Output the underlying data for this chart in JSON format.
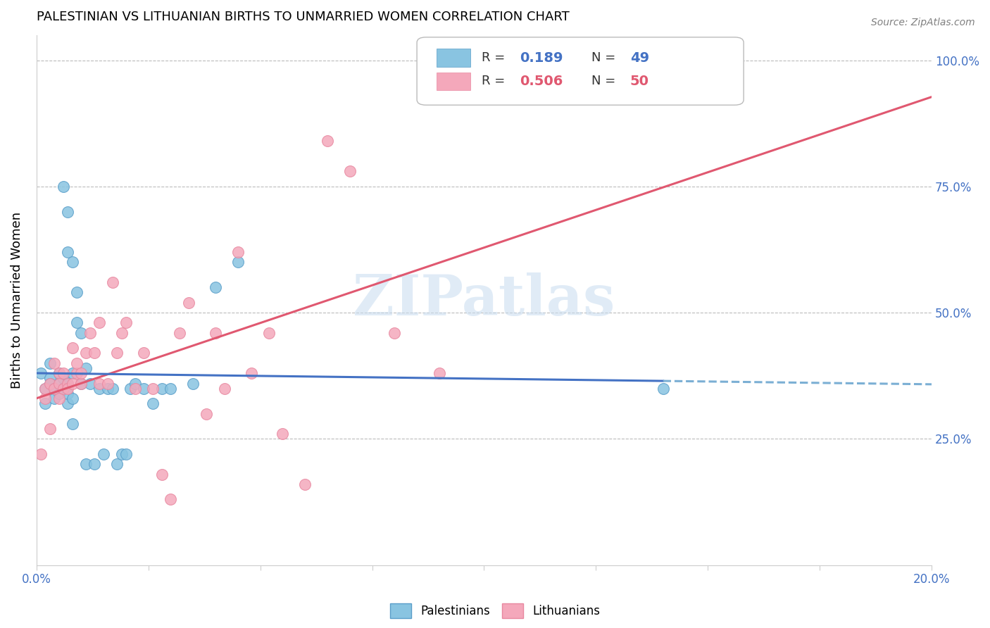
{
  "title": "PALESTINIAN VS LITHUANIAN BIRTHS TO UNMARRIED WOMEN CORRELATION CHART",
  "source": "Source: ZipAtlas.com",
  "ylabel": "Births to Unmarried Women",
  "legend_blue_rval": "0.189",
  "legend_blue_nval": "49",
  "legend_pink_rval": "0.506",
  "legend_pink_nval": "50",
  "watermark": "ZIPatlas",
  "blue_scatter_color": "#89C4E1",
  "blue_scatter_edge": "#5A9EC9",
  "pink_scatter_color": "#F4A8BB",
  "pink_scatter_edge": "#E888A0",
  "blue_line_color": "#4472C4",
  "blue_dash_color": "#7BAFD4",
  "pink_line_color": "#E05870",
  "palestinians_x": [
    0.001,
    0.002,
    0.002,
    0.003,
    0.003,
    0.003,
    0.004,
    0.004,
    0.005,
    0.005,
    0.005,
    0.006,
    0.006,
    0.006,
    0.007,
    0.007,
    0.007,
    0.008,
    0.008,
    0.008,
    0.009,
    0.009,
    0.01,
    0.01,
    0.011,
    0.011,
    0.012,
    0.013,
    0.014,
    0.015,
    0.016,
    0.017,
    0.018,
    0.019,
    0.02,
    0.021,
    0.022,
    0.024,
    0.026,
    0.028,
    0.03,
    0.035,
    0.04,
    0.045,
    0.006,
    0.007,
    0.007,
    0.008,
    0.14
  ],
  "palestinians_y": [
    0.38,
    0.32,
    0.35,
    0.37,
    0.36,
    0.4,
    0.33,
    0.35,
    0.38,
    0.34,
    0.36,
    0.37,
    0.35,
    0.37,
    0.32,
    0.34,
    0.36,
    0.28,
    0.33,
    0.38,
    0.48,
    0.54,
    0.46,
    0.36,
    0.39,
    0.2,
    0.36,
    0.2,
    0.35,
    0.22,
    0.35,
    0.35,
    0.2,
    0.22,
    0.22,
    0.35,
    0.36,
    0.35,
    0.32,
    0.35,
    0.35,
    0.36,
    0.55,
    0.6,
    0.75,
    0.7,
    0.62,
    0.6,
    0.35
  ],
  "lithuanians_x": [
    0.001,
    0.002,
    0.002,
    0.003,
    0.003,
    0.004,
    0.004,
    0.005,
    0.005,
    0.005,
    0.006,
    0.006,
    0.007,
    0.007,
    0.008,
    0.008,
    0.009,
    0.009,
    0.01,
    0.01,
    0.011,
    0.012,
    0.013,
    0.014,
    0.014,
    0.016,
    0.017,
    0.018,
    0.019,
    0.02,
    0.022,
    0.024,
    0.026,
    0.028,
    0.03,
    0.032,
    0.034,
    0.038,
    0.04,
    0.042,
    0.045,
    0.048,
    0.052,
    0.055,
    0.06,
    0.065,
    0.07,
    0.08,
    0.09,
    0.145
  ],
  "lithuanians_y": [
    0.22,
    0.33,
    0.35,
    0.27,
    0.36,
    0.35,
    0.4,
    0.33,
    0.38,
    0.36,
    0.38,
    0.35,
    0.36,
    0.35,
    0.36,
    0.43,
    0.38,
    0.4,
    0.36,
    0.38,
    0.42,
    0.46,
    0.42,
    0.36,
    0.48,
    0.36,
    0.56,
    0.42,
    0.46,
    0.48,
    0.35,
    0.42,
    0.35,
    0.18,
    0.13,
    0.46,
    0.52,
    0.3,
    0.46,
    0.35,
    0.62,
    0.38,
    0.46,
    0.26,
    0.16,
    0.84,
    0.78,
    0.46,
    0.38,
    1.0
  ],
  "xlim": [
    0.0,
    0.2
  ],
  "ylim": [
    0.0,
    1.05
  ],
  "x_ticks": [
    0.0,
    0.025,
    0.05,
    0.075,
    0.1,
    0.125,
    0.15,
    0.175,
    0.2
  ],
  "y_ticks": [
    0.0,
    0.25,
    0.5,
    0.75,
    1.0
  ],
  "right_yticklabels": [
    "",
    "25.0%",
    "50.0%",
    "75.0%",
    "100.0%"
  ]
}
